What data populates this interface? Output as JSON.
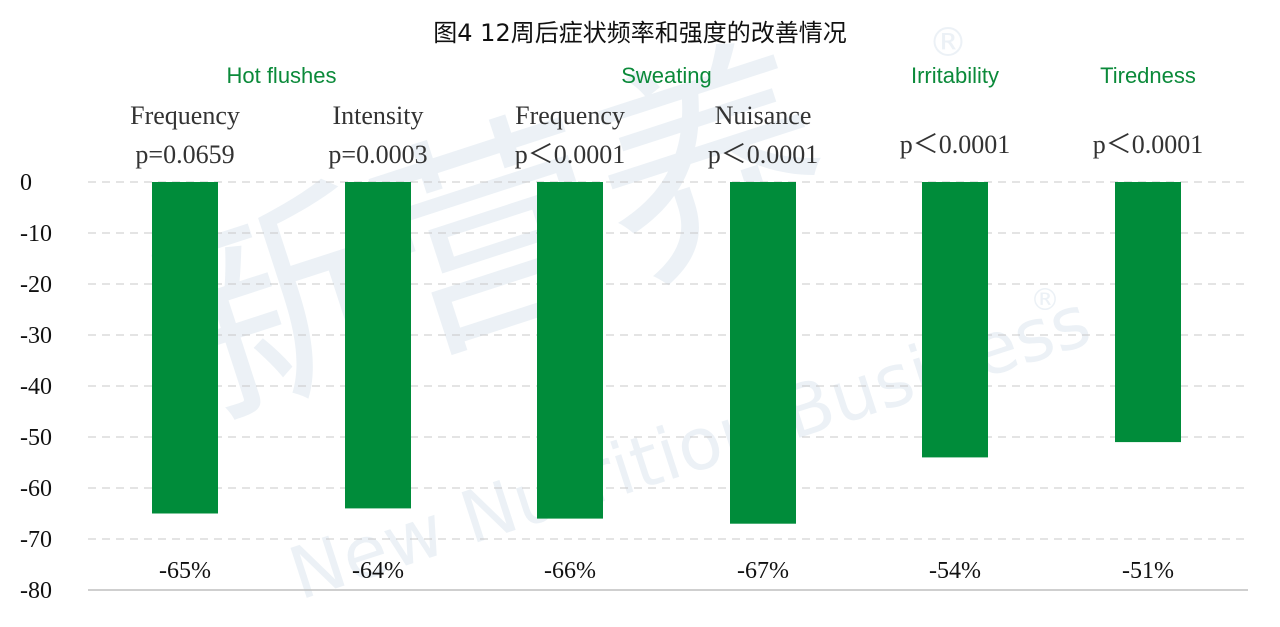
{
  "chart_data": {
    "type": "bar",
    "title": "图4  12周后症状频率和强度的改善情况",
    "xlabel": "",
    "ylabel": "",
    "ylim": [
      -80,
      0
    ],
    "yticks": [
      "0",
      "-10",
      "-20",
      "-30",
      "-40",
      "-50",
      "-60",
      "-70",
      "-80"
    ],
    "grid": "dashed horizontal",
    "groups": [
      {
        "name": "Hot flushes",
        "bars": [
          0,
          1
        ]
      },
      {
        "name": "Sweating",
        "bars": [
          2,
          3
        ]
      },
      {
        "name": "Irritability",
        "bars": [
          4
        ]
      },
      {
        "name": "Tiredness",
        "bars": [
          5
        ]
      }
    ],
    "categories": [
      "Frequency",
      "Intensity",
      "Frequency",
      "Nuisance",
      "",
      ""
    ],
    "p_values": [
      "p=0.0659",
      "p=0.0003",
      "p＜0.0001",
      "p＜0.0001",
      "p＜0.0001",
      "p＜0.0001"
    ],
    "values": [
      -65,
      -64,
      -66,
      -67,
      -54,
      -51
    ],
    "data_labels": [
      "-65%",
      "-64%",
      "-66%",
      "-67%",
      "-54%",
      "-51%"
    ],
    "bar_color": "#008c3a",
    "group_label_color": "#0b8a3a"
  },
  "watermark": {
    "text_cn": "新营养",
    "text_en": "New Nutrition Business",
    "mark": "®"
  }
}
